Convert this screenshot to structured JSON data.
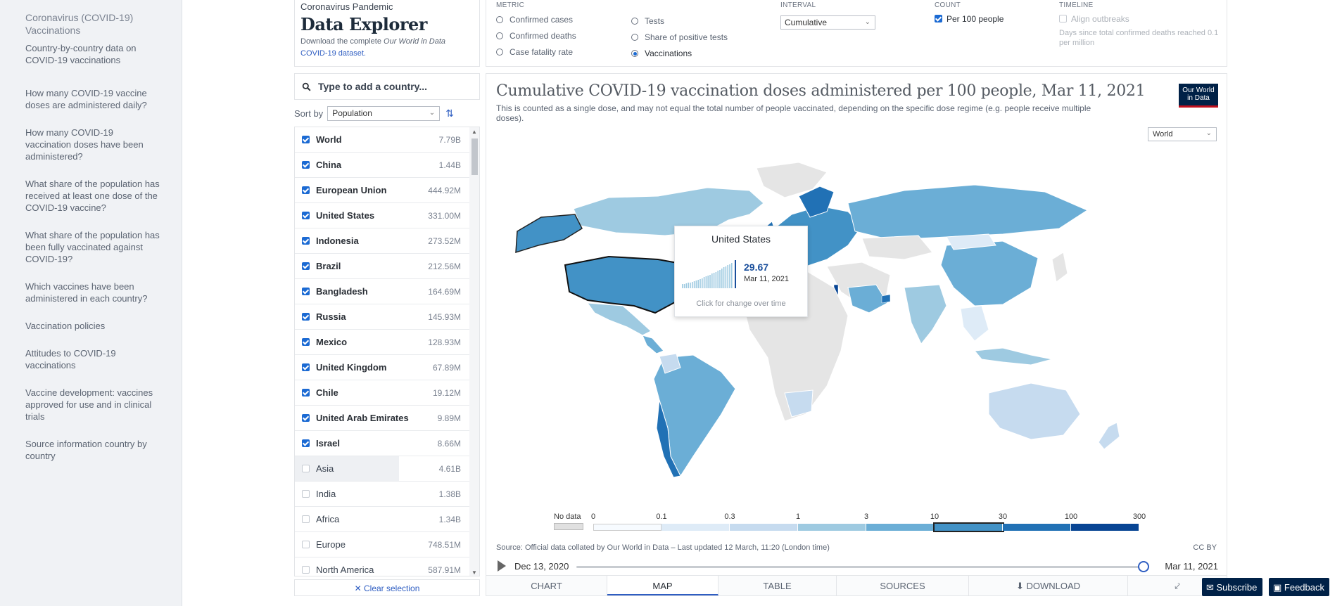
{
  "sidebar": {
    "items": [
      "Coronavirus (COVID-19) Vaccinations",
      "Country-by-country data on COVID-19 vaccinations",
      "How many COVID-19 vaccine doses are administered daily?",
      "How many COVID-19 vaccination doses have been administered?",
      "What share of the population has received at least one dose of the COVID-19 vaccine?",
      "What share of the population has been fully vaccinated against COVID-19?",
      "Which vaccines have been administered in each country?",
      "Vaccination policies",
      "Attitudes to COVID-19 vaccinations",
      "Vaccine development: vaccines approved for use and in clinical trials",
      "Source information country by country"
    ]
  },
  "header": {
    "kicker": "Coronavirus Pandemic",
    "title": "Data Explorer",
    "desc_prefix": "Download the complete ",
    "desc_italic": "Our World in Data",
    "desc_link": "COVID-19 dataset."
  },
  "controls": {
    "metric_label": "Metric",
    "metrics_col1": [
      "Confirmed cases",
      "Confirmed deaths",
      "Case fatality rate"
    ],
    "metrics_col2": [
      "Tests",
      "Share of positive tests",
      "Vaccinations"
    ],
    "selected_metric": "Vaccinations",
    "interval_label": "Interval",
    "interval_value": "Cumulative",
    "count_label": "Count",
    "count_option": "Per 100 people",
    "timeline_label": "Timeline",
    "timeline_option": "Align outbreaks",
    "timeline_note": "Days since total confirmed deaths reached 0.1 per million"
  },
  "search": {
    "placeholder": "Type to add a country..."
  },
  "sort": {
    "label": "Sort by",
    "value": "Population"
  },
  "countries": [
    {
      "name": "World",
      "value": "7.79B",
      "checked": true
    },
    {
      "name": "China",
      "value": "1.44B",
      "checked": true
    },
    {
      "name": "European Union",
      "value": "444.92M",
      "checked": true
    },
    {
      "name": "United States",
      "value": "331.00M",
      "checked": true
    },
    {
      "name": "Indonesia",
      "value": "273.52M",
      "checked": true
    },
    {
      "name": "Brazil",
      "value": "212.56M",
      "checked": true
    },
    {
      "name": "Bangladesh",
      "value": "164.69M",
      "checked": true
    },
    {
      "name": "Russia",
      "value": "145.93M",
      "checked": true
    },
    {
      "name": "Mexico",
      "value": "128.93M",
      "checked": true
    },
    {
      "name": "United Kingdom",
      "value": "67.89M",
      "checked": true
    },
    {
      "name": "Chile",
      "value": "19.12M",
      "checked": true
    },
    {
      "name": "United Arab Emirates",
      "value": "9.89M",
      "checked": true
    },
    {
      "name": "Israel",
      "value": "8.66M",
      "checked": true
    },
    {
      "name": "Asia",
      "value": "4.61B",
      "checked": false,
      "bar": 0.59
    },
    {
      "name": "India",
      "value": "1.38B",
      "checked": false
    },
    {
      "name": "Africa",
      "value": "1.34B",
      "checked": false
    },
    {
      "name": "Europe",
      "value": "748.51M",
      "checked": false
    },
    {
      "name": "North America",
      "value": "587.91M",
      "checked": false
    }
  ],
  "clear_label": "Clear selection",
  "chart": {
    "title": "Cumulative COVID-19 vaccination doses administered per 100 people, Mar 11, 2021",
    "subtitle": "This is counted as a single dose, and may not equal the total number of people vaccinated, depending on the specific dose regime (e.g. people receive multiple doses).",
    "logo_line1": "Our World",
    "logo_line2": "in Data",
    "region": "World",
    "source": "Source: Official data collated by Our World in Data – Last updated 12 March, 11:20 (London time)",
    "license": "CC BY",
    "tooltip": {
      "country": "United States",
      "value": "29.67",
      "date": "Mar 11, 2021",
      "note": "Click for change over time"
    },
    "legend": {
      "no_data": "No data",
      "ticks": [
        "0",
        "0.1",
        "0.3",
        "1",
        "3",
        "10",
        "30",
        "100",
        "300"
      ],
      "colors": [
        "#f7fbff",
        "#deebf7",
        "#c6dbef",
        "#9ecae1",
        "#6baed6",
        "#4292c6",
        "#2171b5",
        "#084594"
      ]
    },
    "timeline": {
      "start": "Dec 13, 2020",
      "end": "Mar 11, 2021"
    }
  },
  "tabs": [
    "Chart",
    "Map",
    "Table",
    "Sources",
    "Download"
  ],
  "active_tab": "Map",
  "subscribe_label": "Subscribe",
  "feedback_label": "Feedback"
}
